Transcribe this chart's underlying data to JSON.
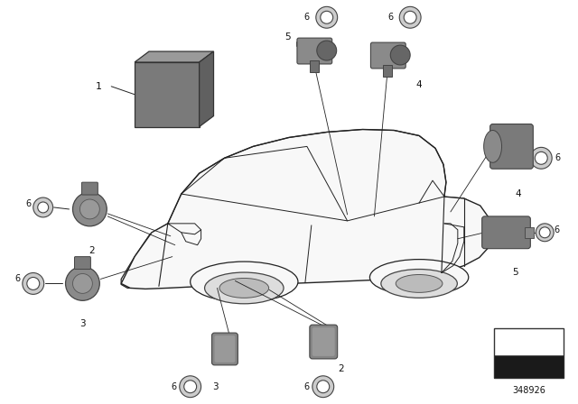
{
  "background_color": "#ffffff",
  "diagram_number": "348926",
  "fig_width": 6.4,
  "fig_height": 4.48,
  "dpi": 100,
  "line_color": "#222222",
  "part_color": "#888888",
  "part_dark": "#555555",
  "part_light": "#aaaaaa",
  "car_line_color": "#333333",
  "car_fill": "#ffffff",
  "label_fontsize": 7.5,
  "num_fontsize": 7.5,
  "ref_num": "348926"
}
